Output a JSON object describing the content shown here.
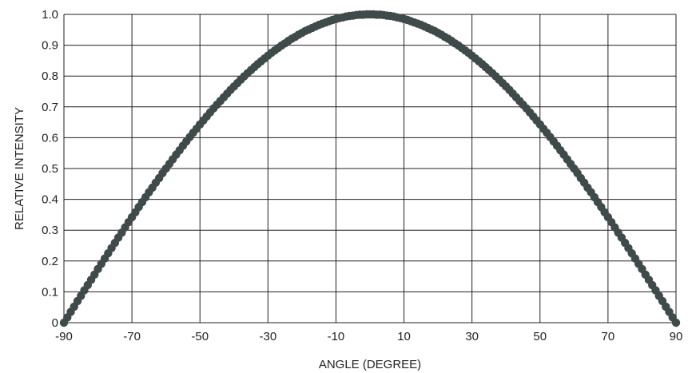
{
  "chart_data": {
    "type": "scatter",
    "title": "",
    "xlabel": "ANGLE (DEGREE)",
    "ylabel": "RELATIVE INTENSITY",
    "xlim": [
      -90,
      90
    ],
    "ylim": [
      0,
      1.0
    ],
    "xticks": [
      -90,
      -70,
      -50,
      -30,
      -10,
      10,
      30,
      50,
      70,
      90
    ],
    "xtick_labels": [
      "-90",
      "-70",
      "-50",
      "-30",
      "-10",
      "10",
      "30",
      "50",
      "70",
      "90"
    ],
    "yticks": [
      0,
      0.1,
      0.2,
      0.3,
      0.4,
      0.5,
      0.6,
      0.7,
      0.8,
      0.9,
      1.0
    ],
    "ytick_labels": [
      "0",
      "0.1",
      "0.2",
      "0.3",
      "0.4",
      "0.5",
      "0.6",
      "0.7",
      "0.8",
      "0.9",
      "1.0"
    ],
    "grid": true,
    "legend": "none",
    "marker_color": "#3f4a4a",
    "grid_color": "#231f20",
    "series": [
      {
        "x": [
          -90,
          -89,
          -88,
          -87,
          -86,
          -85,
          -84,
          -83,
          -82,
          -81,
          -80,
          -79,
          -78,
          -77,
          -76,
          -75,
          -74,
          -73,
          -72,
          -71,
          -70,
          -69,
          -68,
          -67,
          -66,
          -65,
          -64,
          -63,
          -62,
          -61,
          -60,
          -59,
          -58,
          -57,
          -56,
          -55,
          -54,
          -53,
          -52,
          -51,
          -50,
          -49,
          -48,
          -47,
          -46,
          -45,
          -44,
          -43,
          -42,
          -41,
          -40,
          -39,
          -38,
          -37,
          -36,
          -35,
          -34,
          -33,
          -32,
          -31,
          -30,
          -29,
          -28,
          -27,
          -26,
          -25,
          -24,
          -23,
          -22,
          -21,
          -20,
          -19,
          -18,
          -17,
          -16,
          -15,
          -14,
          -13,
          -12,
          -11,
          -10,
          -9,
          -8,
          -7,
          -6,
          -5,
          -4,
          -3,
          -2,
          -1,
          0,
          1,
          2,
          3,
          4,
          5,
          6,
          7,
          8,
          9,
          10,
          11,
          12,
          13,
          14,
          15,
          16,
          17,
          18,
          19,
          20,
          21,
          22,
          23,
          24,
          25,
          26,
          27,
          28,
          29,
          30,
          31,
          32,
          33,
          34,
          35,
          36,
          37,
          38,
          39,
          40,
          41,
          42,
          43,
          44,
          45,
          46,
          47,
          48,
          49,
          50,
          51,
          52,
          53,
          54,
          55,
          56,
          57,
          58,
          59,
          60,
          61,
          62,
          63,
          64,
          65,
          66,
          67,
          68,
          69,
          70,
          71,
          72,
          73,
          74,
          75,
          76,
          77,
          78,
          79,
          80,
          81,
          82,
          83,
          84,
          85,
          86,
          87,
          88,
          89,
          90
        ],
        "y": [
          0.0,
          0.017,
          0.035,
          0.052,
          0.07,
          0.087,
          0.105,
          0.122,
          0.139,
          0.156,
          0.174,
          0.191,
          0.208,
          0.225,
          0.242,
          0.259,
          0.276,
          0.292,
          0.309,
          0.326,
          0.342,
          0.358,
          0.375,
          0.391,
          0.407,
          0.423,
          0.438,
          0.454,
          0.469,
          0.485,
          0.5,
          0.515,
          0.53,
          0.545,
          0.559,
          0.574,
          0.588,
          0.602,
          0.616,
          0.629,
          0.643,
          0.656,
          0.669,
          0.682,
          0.695,
          0.707,
          0.719,
          0.731,
          0.743,
          0.755,
          0.766,
          0.777,
          0.788,
          0.799,
          0.809,
          0.819,
          0.829,
          0.839,
          0.848,
          0.857,
          0.866,
          0.875,
          0.883,
          0.891,
          0.899,
          0.906,
          0.914,
          0.921,
          0.927,
          0.934,
          0.94,
          0.946,
          0.951,
          0.956,
          0.961,
          0.966,
          0.97,
          0.974,
          0.978,
          0.982,
          0.985,
          0.988,
          0.99,
          0.993,
          0.995,
          0.996,
          0.998,
          0.999,
          0.999,
          1.0,
          1.0,
          1.0,
          0.999,
          0.999,
          0.998,
          0.996,
          0.995,
          0.993,
          0.99,
          0.988,
          0.985,
          0.982,
          0.978,
          0.974,
          0.97,
          0.966,
          0.961,
          0.956,
          0.951,
          0.946,
          0.94,
          0.934,
          0.927,
          0.921,
          0.914,
          0.906,
          0.899,
          0.891,
          0.883,
          0.875,
          0.866,
          0.857,
          0.848,
          0.839,
          0.829,
          0.819,
          0.809,
          0.799,
          0.788,
          0.777,
          0.766,
          0.755,
          0.743,
          0.731,
          0.719,
          0.707,
          0.695,
          0.682,
          0.669,
          0.656,
          0.643,
          0.629,
          0.616,
          0.602,
          0.588,
          0.574,
          0.559,
          0.545,
          0.53,
          0.515,
          0.5,
          0.485,
          0.469,
          0.454,
          0.438,
          0.423,
          0.407,
          0.391,
          0.375,
          0.358,
          0.342,
          0.326,
          0.309,
          0.292,
          0.276,
          0.259,
          0.242,
          0.225,
          0.208,
          0.191,
          0.174,
          0.156,
          0.139,
          0.122,
          0.105,
          0.087,
          0.07,
          0.052,
          0.035,
          0.017,
          0.0
        ]
      }
    ]
  }
}
